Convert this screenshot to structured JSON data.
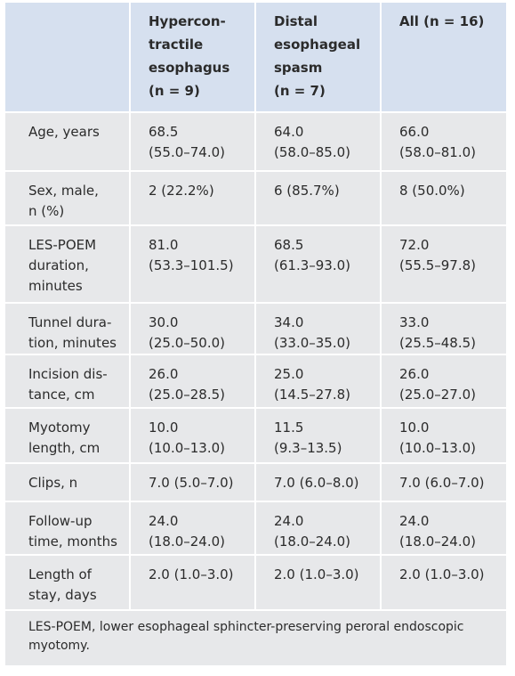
{
  "table": {
    "headers": [
      "",
      "Hypercon-\ntractile\nesophagus\n(n = 9)",
      "Distal\nesophageal\nspasm\n(n = 7)",
      "All (n = 16)"
    ],
    "rows": [
      [
        "Age, years",
        "68.5\n(55.0–74.0)",
        "64.0\n(58.0–85.0)",
        "66.0\n(58.0–81.0)"
      ],
      [
        "Sex, male,\nn (%)",
        "2 (22.2%)",
        "6 (85.7%)",
        "8 (50.0%)"
      ],
      [
        "LES-POEM\nduration,\nminutes",
        "81.0\n(53.3–101.5)",
        "68.5\n(61.3–93.0)",
        "72.0\n(55.5–97.8)"
      ],
      [
        "Tunnel dura-\ntion, minutes",
        "30.0\n(25.0–50.0)",
        "34.0\n(33.0–35.0)",
        "33.0\n(25.5–48.5)"
      ],
      [
        "Incision dis-\ntance, cm",
        "26.0\n(25.0–28.5)",
        "25.0\n(14.5–27.8)",
        "26.0\n(25.0–27.0)"
      ],
      [
        "Myotomy\nlength, cm",
        "10.0\n(10.0–13.0)",
        "11.5\n(9.3–13.5)",
        "10.0\n(10.0–13.0)"
      ],
      [
        "Clips, n",
        "7.0 (5.0–7.0)",
        "7.0 (6.0–8.0)",
        "7.0 (6.0–7.0)"
      ],
      [
        "Follow-up\ntime, months",
        "24.0\n(18.0–24.0)",
        "24.0\n(18.0–24.0)",
        "24.0\n(18.0–24.0)"
      ],
      [
        "Length of\nstay, days",
        "2.0 (1.0–3.0)",
        "2.0 (1.0–3.0)",
        "2.0 (1.0–3.0)"
      ]
    ],
    "footnote": "LES-POEM, lower esophageal sphincter-preserving peroral endoscopic\nmyotomy."
  }
}
